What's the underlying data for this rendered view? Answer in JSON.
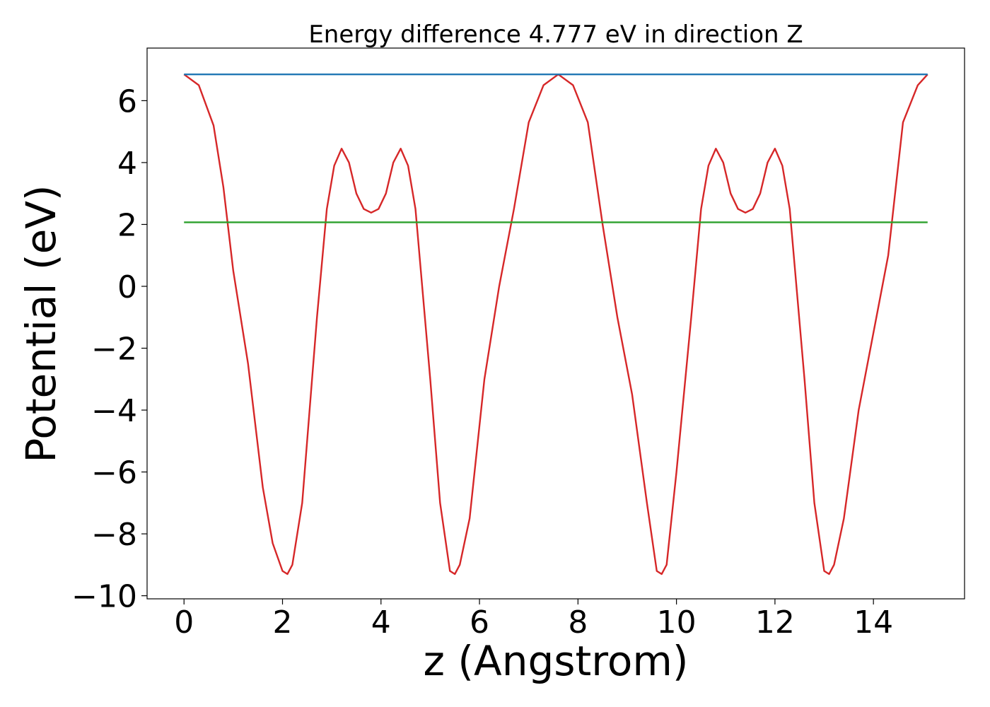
{
  "chart_data": {
    "type": "line",
    "title": "Energy difference 4.777 eV in direction Z",
    "xlabel": "z (Angstrom)",
    "ylabel": "Potential (eV)",
    "xlim": [
      -0.75,
      15.85
    ],
    "ylim": [
      -10.1,
      7.7
    ],
    "xticks": [
      0,
      2,
      4,
      6,
      8,
      10,
      12,
      14
    ],
    "xtick_labels": [
      "0",
      "2",
      "4",
      "6",
      "8",
      "10",
      "12",
      "14"
    ],
    "yticks": [
      -10,
      -8,
      -6,
      -4,
      -2,
      0,
      2,
      4,
      6
    ],
    "ytick_labels": [
      "−10",
      "−8",
      "−6",
      "−4",
      "−2",
      "0",
      "2",
      "4",
      "6"
    ],
    "grid": false,
    "series": [
      {
        "color": "#d62728",
        "x": [
          0.0,
          0.3,
          0.6,
          0.8,
          1.0,
          1.3,
          1.6,
          1.8,
          2.0,
          2.1,
          2.2,
          2.4,
          2.7,
          2.9,
          3.05,
          3.2,
          3.35,
          3.5,
          3.65,
          3.8,
          3.95,
          4.1,
          4.25,
          4.4,
          4.55,
          4.7,
          5.0,
          5.2,
          5.4,
          5.5,
          5.6,
          5.8,
          6.1,
          6.4,
          6.7,
          7.0,
          7.3,
          7.6,
          7.9,
          8.2,
          8.5,
          8.8,
          9.1,
          9.4,
          9.6,
          9.7,
          9.8,
          10.0,
          10.3,
          10.5,
          10.65,
          10.8,
          10.95,
          11.1,
          11.25,
          11.4,
          11.55,
          11.7,
          11.85,
          12.0,
          12.15,
          12.3,
          12.6,
          12.8,
          13.0,
          13.1,
          13.2,
          13.4,
          13.7,
          14.0,
          14.3,
          14.6,
          14.9,
          15.1
        ],
        "y": [
          6.85,
          6.5,
          5.2,
          3.2,
          0.5,
          -2.5,
          -6.5,
          -8.3,
          -9.2,
          -9.3,
          -9.0,
          -7.0,
          -1.0,
          2.5,
          3.9,
          4.45,
          4.0,
          3.0,
          2.5,
          2.38,
          2.5,
          3.0,
          4.0,
          4.45,
          3.9,
          2.5,
          -3.0,
          -7.0,
          -9.2,
          -9.3,
          -9.0,
          -7.5,
          -3.0,
          0.0,
          2.5,
          5.3,
          6.5,
          6.85,
          6.5,
          5.3,
          2.0,
          -1.0,
          -3.5,
          -7.0,
          -9.2,
          -9.3,
          -9.0,
          -6.0,
          -1.0,
          2.5,
          3.9,
          4.45,
          4.0,
          3.0,
          2.5,
          2.38,
          2.5,
          3.0,
          4.0,
          4.45,
          3.9,
          2.5,
          -3.0,
          -7.0,
          -9.2,
          -9.3,
          -9.0,
          -7.5,
          -4.0,
          -1.5,
          1.0,
          5.3,
          6.5,
          6.85
        ]
      },
      {
        "color": "#1f77b4",
        "x": [
          0.0,
          15.1
        ],
        "y": [
          6.85,
          6.85
        ]
      },
      {
        "color": "#2ca02c",
        "x": [
          0.0,
          15.1
        ],
        "y": [
          2.07,
          2.07
        ]
      }
    ]
  }
}
